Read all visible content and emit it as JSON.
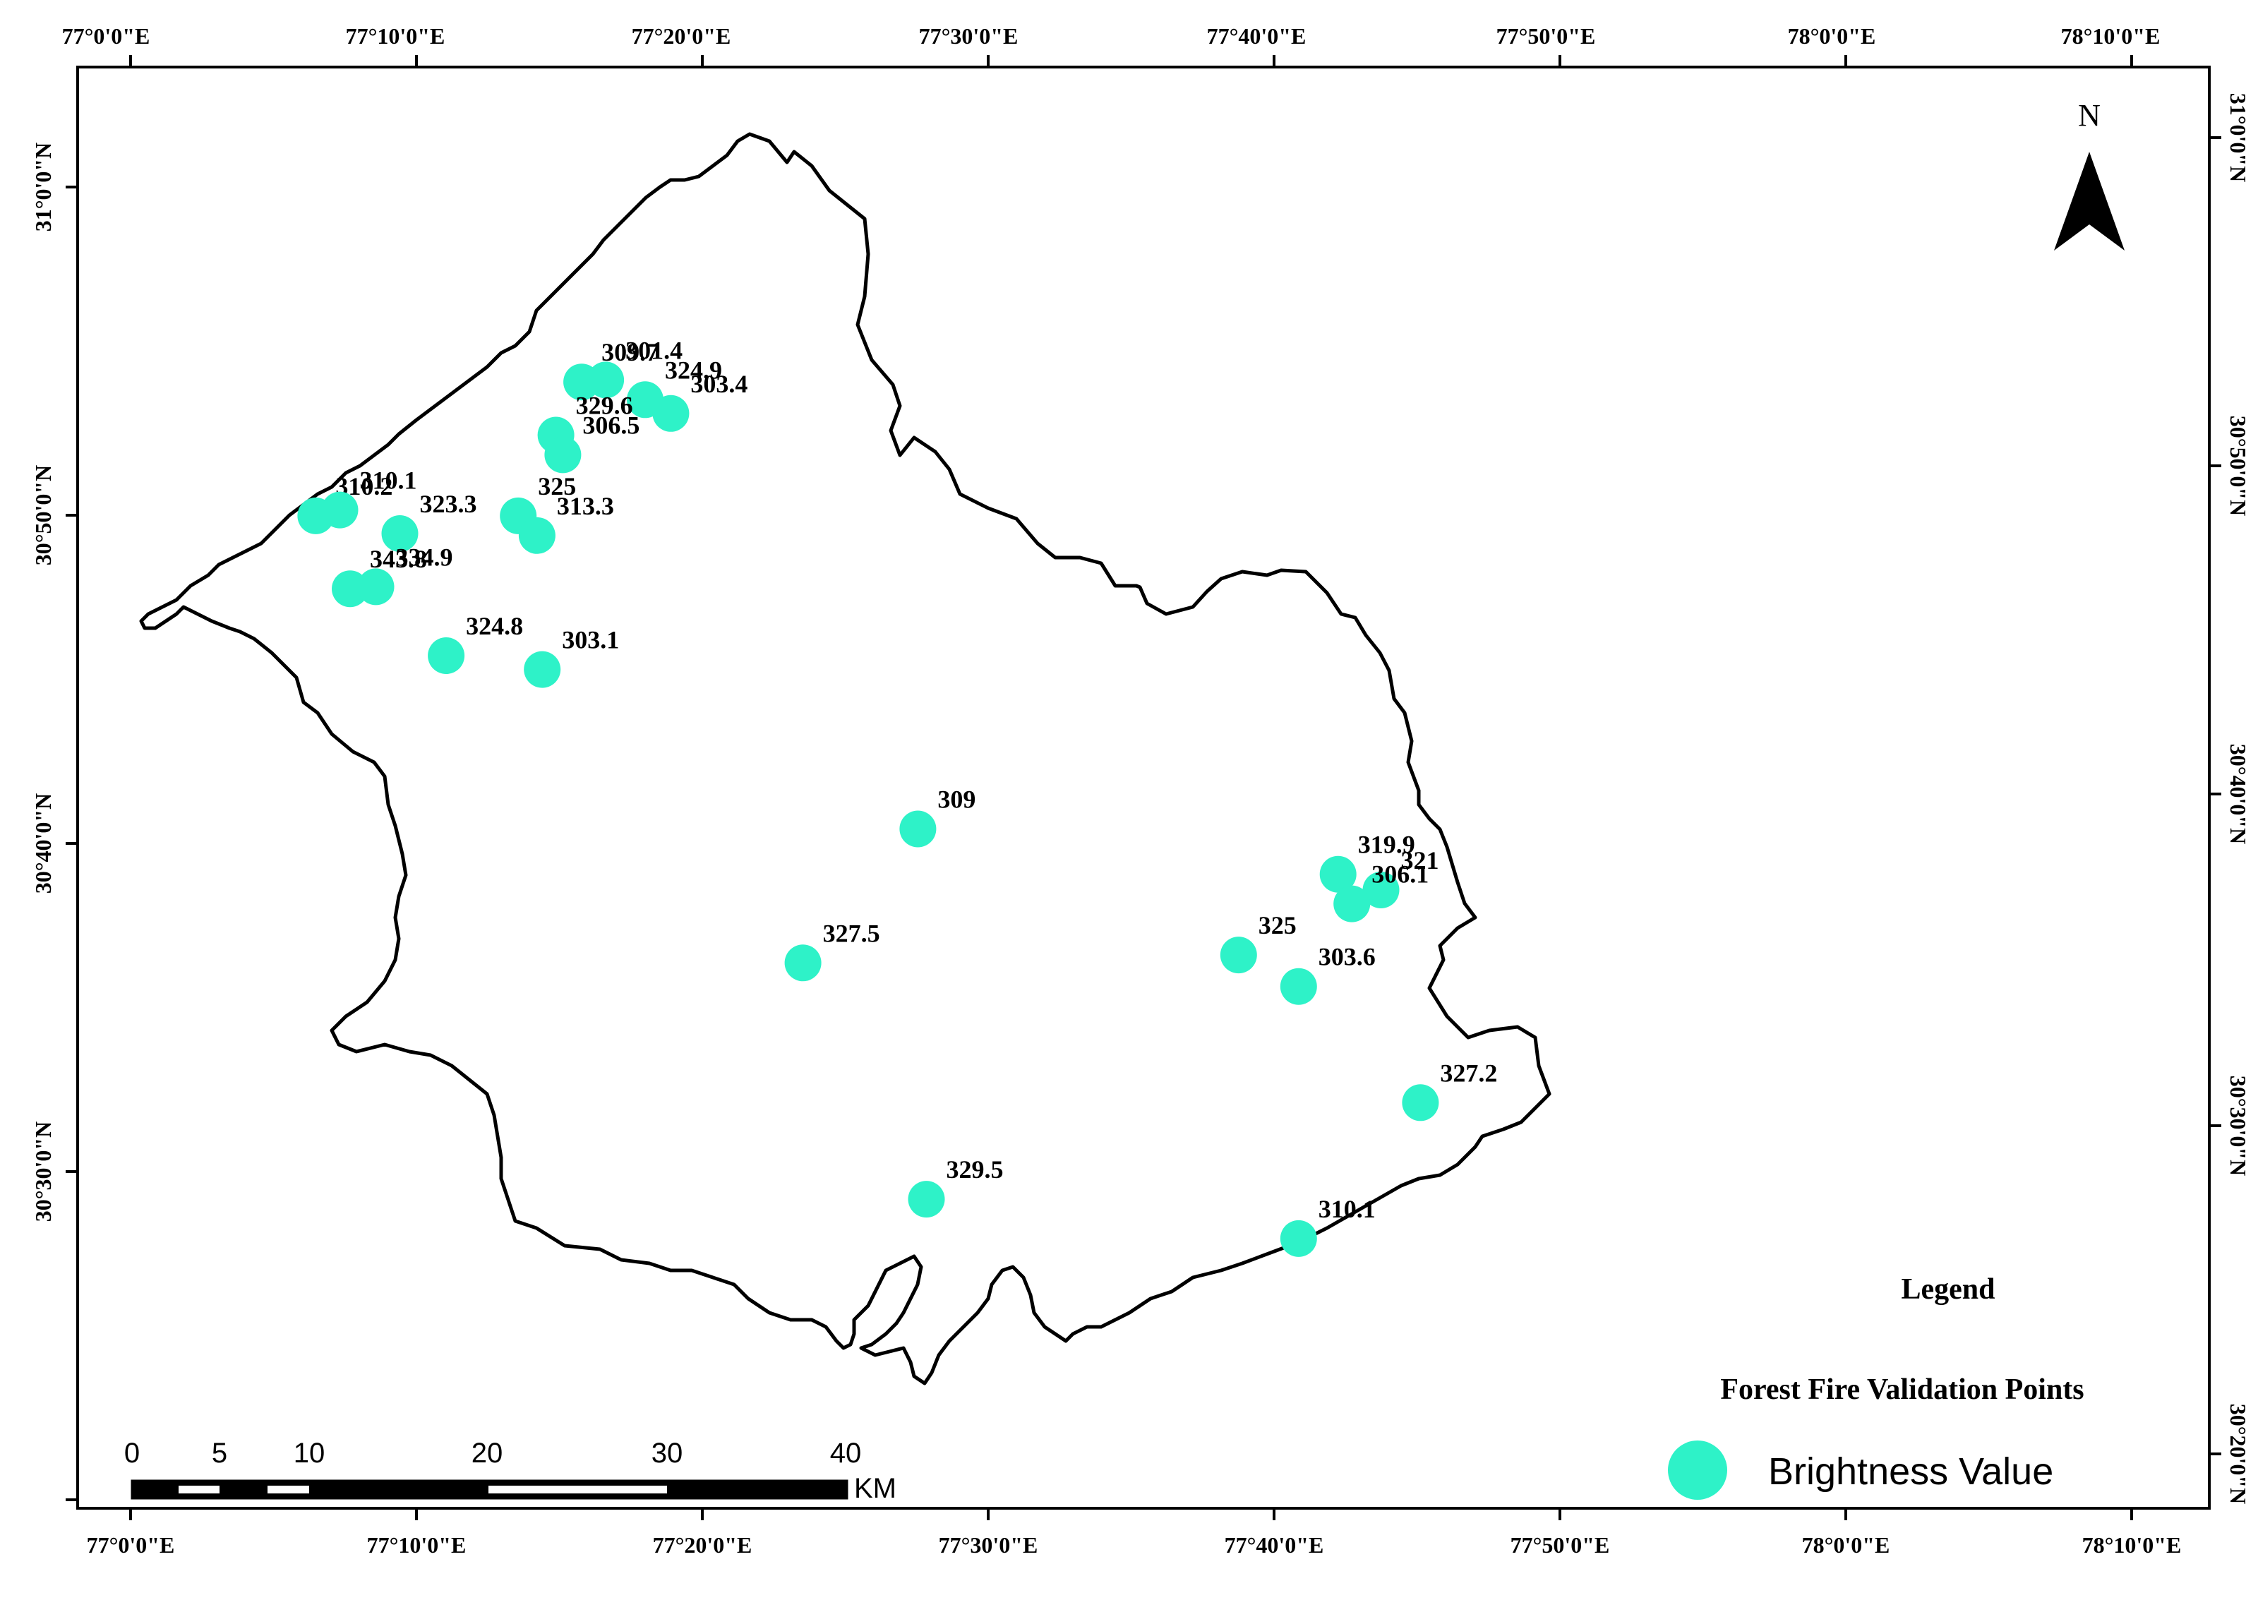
{
  "top_labels": [
    "77°0'0\"E",
    "77°10'0\"E",
    "77°20'0\"E",
    "77°30'0\"E",
    "77°40'0\"E",
    "77°50'0\"E",
    "78°0'0\"E",
    "78°10'0\"E"
  ],
  "bottom_labels": [
    "77°0'0\"E",
    "77°10'0\"E",
    "77°20'0\"E",
    "77°30'0\"E",
    "77°40'0\"E",
    "77°50'0\"E",
    "78°0'0\"E",
    "78°10'0\"E"
  ],
  "left_labels": [
    "31°0'0\"N",
    "30°50'0\"N",
    "30°40'0\"N",
    "30°30'0\"N"
  ],
  "right_labels": [
    "31°0'0\"N",
    "30°50'0\"N",
    "30°40'0\"N",
    "30°30'0\"N",
    "30°20'0\"N"
  ],
  "north_label": "N",
  "legend": {
    "title": "Legend",
    "subtitle": "Forest Fire Validation Points",
    "item": "Brightness Value",
    "marker_color": "#2ef2c8"
  },
  "scale": {
    "ticks": [
      "0",
      "5",
      "10",
      "20",
      "30",
      "40"
    ],
    "unit": "KM"
  },
  "points": [
    {
      "label": "309.7",
      "lon": 77.263,
      "lat": 30.901
    },
    {
      "label": "301.4",
      "lon": 77.277,
      "lat": 30.902
    },
    {
      "label": "324.9",
      "lon": 77.3,
      "lat": 30.892
    },
    {
      "label": "303.4",
      "lon": 77.315,
      "lat": 30.885
    },
    {
      "label": "329.6",
      "lon": 77.248,
      "lat": 30.874
    },
    {
      "label": "306.5",
      "lon": 77.252,
      "lat": 30.864
    },
    {
      "label": "310.2",
      "lon": 77.108,
      "lat": 30.833
    },
    {
      "label": "310.1",
      "lon": 77.122,
      "lat": 30.836
    },
    {
      "label": "323.3",
      "lon": 77.157,
      "lat": 30.824
    },
    {
      "label": "325",
      "lon": 77.226,
      "lat": 30.833
    },
    {
      "label": "313.3",
      "lon": 77.237,
      "lat": 30.823
    },
    {
      "label": "343.8",
      "lon": 77.128,
      "lat": 30.796
    },
    {
      "label": "334.9",
      "lon": 77.143,
      "lat": 30.797
    },
    {
      "label": "324.8",
      "lon": 77.184,
      "lat": 30.762
    },
    {
      "label": "303.1",
      "lon": 77.24,
      "lat": 30.755
    },
    {
      "label": "309",
      "lon": 77.459,
      "lat": 30.674
    },
    {
      "label": "327.5",
      "lon": 77.392,
      "lat": 30.606
    },
    {
      "label": "319.9",
      "lon": 77.704,
      "lat": 30.651
    },
    {
      "label": "321",
      "lon": 77.729,
      "lat": 30.643
    },
    {
      "label": "306.1",
      "lon": 77.712,
      "lat": 30.636
    },
    {
      "label": "325",
      "lon": 77.646,
      "lat": 30.61
    },
    {
      "label": "303.6",
      "lon": 77.681,
      "lat": 30.594
    },
    {
      "label": "327.2",
      "lon": 77.752,
      "lat": 30.535
    },
    {
      "label": "329.5",
      "lon": 77.464,
      "lat": 30.486
    },
    {
      "label": "310.1",
      "lon": 77.681,
      "lat": 30.466
    }
  ]
}
